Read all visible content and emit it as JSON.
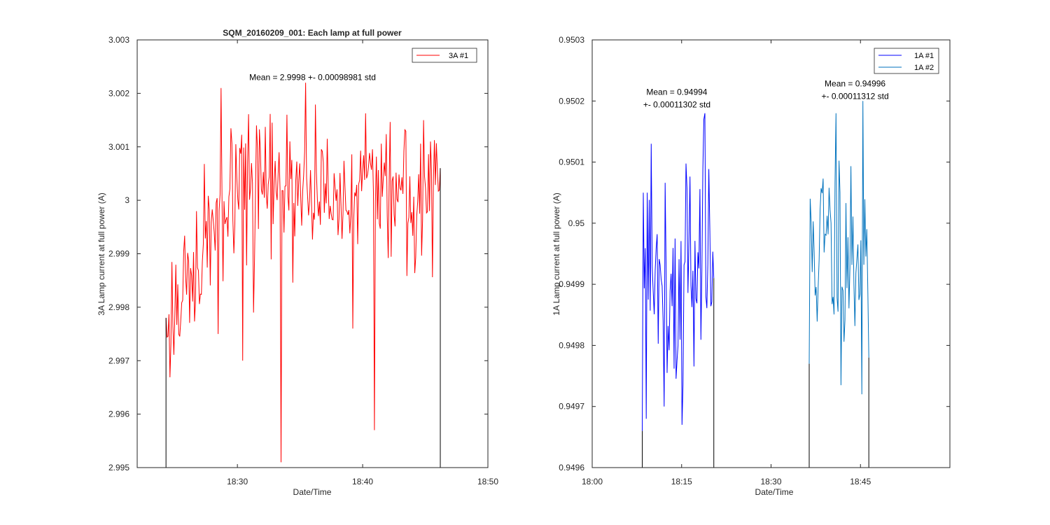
{
  "chart_data": [
    {
      "type": "line",
      "title": "SQM_20160209_001: Each lamp at full power",
      "xlabel": "Date/Time",
      "ylabel": "3A Lamp current at full power (A)",
      "xlim_minutes": [
        1102,
        1130
      ],
      "ylim": [
        2.995,
        3.003
      ],
      "xticks": [
        {
          "value": 1110,
          "label": "18:30"
        },
        {
          "value": 1120,
          "label": "18:40"
        },
        {
          "value": 1130,
          "label": "18:50"
        }
      ],
      "yticks": [
        {
          "value": 2.995,
          "label": "2.995"
        },
        {
          "value": 2.996,
          "label": "2.996"
        },
        {
          "value": 2.997,
          "label": "2.997"
        },
        {
          "value": 2.998,
          "label": "2.998"
        },
        {
          "value": 2.999,
          "label": "2.999"
        },
        {
          "value": 3.0,
          "label": "3"
        },
        {
          "value": 3.001,
          "label": "3.001"
        },
        {
          "value": 3.002,
          "label": "3.002"
        },
        {
          "value": 3.003,
          "label": "3.003"
        }
      ],
      "legend": {
        "location": "top-right",
        "entries": [
          "3A #1"
        ]
      },
      "annotations": [
        {
          "lines": [
            "Mean = 2.9998 +- 0.00098981 std"
          ],
          "x": 1116,
          "y": 3.00225
        }
      ],
      "series": [
        {
          "name": "3A #1",
          "color": "#ff0000",
          "start_minute": 1104.3,
          "end_minute": 1126.2,
          "seed": 17,
          "mean": 2.9998,
          "std": 0.0008,
          "trend": [
            -0.0012,
            0.0004
          ],
          "spikes": [
            {
              "at": 0.0,
              "value": 2.9978
            },
            {
              "at": 0.19,
              "value": 2.9975
            },
            {
              "at": 0.2,
              "value": 3.0021
            },
            {
              "at": 0.28,
              "value": 2.997
            },
            {
              "at": 0.32,
              "value": 2.9979
            },
            {
              "at": 0.33,
              "value": 3.0014
            },
            {
              "at": 0.42,
              "value": 2.9951
            },
            {
              "at": 0.44,
              "value": 3.0016
            },
            {
              "at": 0.51,
              "value": 3.0022
            },
            {
              "at": 0.68,
              "value": 2.9976
            },
            {
              "at": 0.76,
              "value": 2.9957
            },
            {
              "at": 0.94,
              "value": 3.0015
            },
            {
              "at": 1.0,
              "value": 3.0006
            }
          ],
          "drops": [
            {
              "at": 0.0,
              "to": 2.995
            },
            {
              "at": 1.0,
              "to": 2.995
            }
          ]
        }
      ]
    },
    {
      "type": "line",
      "title": "",
      "xlabel": "Date/Time",
      "ylabel": "1A Lamp current at full power (A)",
      "xlim_minutes": [
        1080,
        1140
      ],
      "ylim": [
        0.9496,
        0.9503
      ],
      "xticks": [
        {
          "value": 1080,
          "label": "18:00"
        },
        {
          "value": 1095,
          "label": "18:15"
        },
        {
          "value": 1110,
          "label": "18:30"
        },
        {
          "value": 1125,
          "label": "18:45"
        }
      ],
      "yticks": [
        {
          "value": 0.9496,
          "label": "0.9496"
        },
        {
          "value": 0.9497,
          "label": "0.9497"
        },
        {
          "value": 0.9498,
          "label": "0.9498"
        },
        {
          "value": 0.9499,
          "label": "0.9499"
        },
        {
          "value": 0.95,
          "label": "0.95"
        },
        {
          "value": 0.9501,
          "label": "0.9501"
        },
        {
          "value": 0.9502,
          "label": "0.9502"
        },
        {
          "value": 0.9503,
          "label": "0.9503"
        }
      ],
      "legend": {
        "location": "top-right",
        "entries": [
          "1A #1",
          "1A #2"
        ]
      },
      "annotations": [
        {
          "lines": [
            "Mean = 0.94994",
            "+- 0.00011302 std"
          ],
          "x": 1094.2,
          "y": 0.95021
        },
        {
          "lines": [
            "Mean = 0.94996",
            "+- 0.00011312 std"
          ],
          "x": 1124.1,
          "y": 0.950224
        }
      ],
      "series": [
        {
          "name": "1A #1",
          "color": "#0000ff",
          "start_minute": 1088.4,
          "end_minute": 1100.4,
          "seed": 5,
          "mean": 0.94994,
          "std": 0.000105,
          "trend": [
            0,
            0
          ],
          "spikes": [
            {
              "at": 0.0,
              "value": 0.94966
            },
            {
              "at": 0.02,
              "value": 0.95005
            },
            {
              "at": 0.06,
              "value": 0.94968
            },
            {
              "at": 0.12,
              "value": 0.95013
            },
            {
              "at": 0.3,
              "value": 0.9497
            },
            {
              "at": 0.55,
              "value": 0.94967
            },
            {
              "at": 0.86,
              "value": 0.95017
            },
            {
              "at": 0.88,
              "value": 0.95018
            },
            {
              "at": 1.0,
              "value": 0.94991
            }
          ],
          "drops": [
            {
              "at": 0.0,
              "to": 0.9496
            },
            {
              "at": 1.0,
              "to": 0.9496
            }
          ]
        },
        {
          "name": "1A #2",
          "color": "#0072bd",
          "start_minute": 1116.4,
          "end_minute": 1126.4,
          "seed": 11,
          "mean": 0.94996,
          "std": 0.000105,
          "trend": [
            0,
            0
          ],
          "spikes": [
            {
              "at": 0.0,
              "value": 0.94977
            },
            {
              "at": 0.02,
              "value": 0.95004
            },
            {
              "at": 0.45,
              "value": 0.95018
            },
            {
              "at": 0.88,
              "value": 0.94972
            },
            {
              "at": 0.9,
              "value": 0.9502
            },
            {
              "at": 1.0,
              "value": 0.94978
            }
          ],
          "drops": [
            {
              "at": 0.0,
              "to": 0.9496
            },
            {
              "at": 1.0,
              "to": 0.9496
            }
          ]
        }
      ]
    }
  ]
}
